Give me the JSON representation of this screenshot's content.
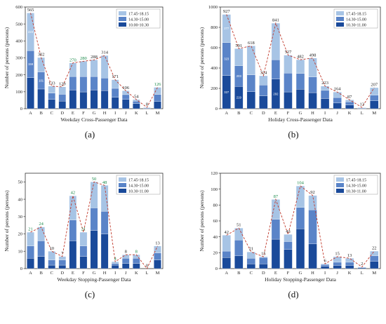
{
  "colors": {
    "layer_0": "#1a4a9a",
    "layer_1": "#5a84c8",
    "layer_2": "#a7c4e5",
    "trend_line": "#c0392b",
    "total_black": "#222222",
    "total_green": "#1a8a4a",
    "axis": "#333333"
  },
  "chart_data": [
    {
      "type": "bar",
      "panel_label": "(a)",
      "xlabel": "Weekday Cross-Passenger Data",
      "ylabel": "Number of persons (persons)",
      "categories": [
        "A",
        "B",
        "C",
        "D",
        "E",
        "F",
        "G",
        "H",
        "I",
        "J",
        "K",
        "L",
        "M"
      ],
      "ylim": [
        0,
        600
      ],
      "yticks": [
        0,
        100,
        200,
        300,
        400,
        500,
        600
      ],
      "legend": [
        "17.45-18.15",
        "14.30-15.00",
        "10.00-10.30"
      ],
      "series": [
        {
          "name": "10.00-10.30",
          "values": [
            183,
            116,
            55,
            45,
            110,
            99,
            110,
            107,
            67,
            55,
            30,
            3,
            42
          ],
          "labels": [
            "",
            "",
            "",
            "",
            "",
            "",
            "",
            "",
            "",
            "",
            "",
            "",
            ""
          ]
        },
        {
          "name": "14.30-15.00",
          "values": [
            159,
            101,
            37,
            40,
            80,
            90,
            80,
            74,
            53,
            28,
            15,
            3,
            42
          ],
          "labels": [
            "159",
            "101",
            "",
            "",
            "",
            "",
            "",
            "",
            "",
            "",
            "",
            "",
            ""
          ]
        },
        {
          "name": "17.45-18.15",
          "values": [
            223,
            85,
            41,
            44,
            80,
            91,
            98,
            133,
            51,
            23,
            9,
            2,
            42
          ],
          "labels": [
            "223",
            "",
            "",
            "",
            "",
            "",
            "",
            "",
            "",
            "",
            "",
            "",
            ""
          ]
        }
      ],
      "totals": [
        565,
        302,
        133,
        129,
        270,
        280,
        288,
        314,
        171,
        106,
        54,
        8,
        126
      ],
      "total_colors": [
        "black",
        "black",
        "black",
        "black",
        "green",
        "green",
        "black",
        "black",
        "black",
        "black",
        "black",
        "black",
        "green"
      ]
    },
    {
      "type": "bar",
      "panel_label": "(b)",
      "xlabel": "Holiday Cross-Passenger Data",
      "ylabel": "Number of persons (persons)",
      "categories": [
        "A",
        "B",
        "C",
        "D",
        "E",
        "F",
        "G",
        "H",
        "I",
        "J",
        "K",
        "L",
        "M"
      ],
      "ylim": [
        0,
        1000
      ],
      "yticks": [
        0,
        200,
        400,
        600,
        800,
        1000
      ],
      "legend": [
        "17.45-18.15",
        "14.30-15.00",
        "10.30-11.00"
      ],
      "series": [
        {
          "name": "10.30-11.00",
          "values": [
            327,
            219,
            167,
            127,
            292,
            165,
            192,
            158,
            100,
            56,
            37,
            4,
            77
          ],
          "labels": [
            "327",
            "219",
            "",
            "",
            "292",
            "",
            "",
            "",
            "",
            "",
            "",
            "",
            ""
          ]
        },
        {
          "name": "14.30-15.00",
          "values": [
            323,
            203,
            166,
            105,
            190,
            185,
            155,
            155,
            80,
            54,
            30,
            5,
            57
          ],
          "labels": [
            "323",
            "203",
            "",
            "",
            "",
            "",
            "",
            "",
            "",
            "",
            "",
            "",
            ""
          ]
        },
        {
          "name": "17.45-18.15",
          "values": [
            277,
            169,
            285,
            92,
            359,
            177,
            135,
            185,
            43,
            54,
            20,
            4,
            73
          ],
          "labels": [
            "277",
            "",
            "",
            "",
            "",
            "",
            "",
            "",
            "",
            "",
            "",
            "",
            ""
          ]
        }
      ],
      "totals": [
        927,
        591,
        618,
        324,
        841,
        527,
        482,
        498,
        223,
        164,
        87,
        13,
        207
      ],
      "total_colors": [
        "black",
        "black",
        "black",
        "black",
        "black",
        "black",
        "black",
        "black",
        "black",
        "black",
        "black",
        "black",
        "black"
      ]
    },
    {
      "type": "bar",
      "panel_label": "(c)",
      "xlabel": "Weekday Stopping-Passenger Data",
      "ylabel": "Number of persons (persons)",
      "categories": [
        "A",
        "B",
        "C",
        "D",
        "E",
        "F",
        "G",
        "H",
        "I",
        "J",
        "K",
        "L",
        "M"
      ],
      "ylim": [
        0,
        55
      ],
      "yticks": [
        0,
        10,
        20,
        30,
        40,
        50
      ],
      "legend": [
        "17.45-18.15",
        "14.30-15.00",
        "10.30-11.00"
      ],
      "series": [
        {
          "name": "10.30-11.00",
          "values": [
            6,
            7,
            2,
            2,
            16,
            7,
            22,
            20,
            2,
            3,
            3,
            0,
            5
          ],
          "labels": [
            "",
            "",
            "",
            "",
            "",
            "",
            "",
            "",
            "",
            "",
            "",
            "",
            ""
          ]
        },
        {
          "name": "14.30-15.00",
          "values": [
            7,
            9,
            3,
            3,
            12,
            6,
            13,
            13,
            1,
            3,
            3,
            0,
            4
          ],
          "labels": [
            "",
            "",
            "",
            "",
            "",
            "",
            "",
            "",
            "",
            "",
            "",
            "",
            ""
          ]
        },
        {
          "name": "17.45-18.15",
          "values": [
            8,
            8,
            5,
            2,
            14,
            8,
            15,
            15,
            1,
            2,
            2,
            0,
            4
          ],
          "labels": [
            "",
            "",
            "",
            "",
            "",
            "",
            "",
            "",
            "",
            "",
            "",
            "",
            ""
          ]
        }
      ],
      "totals": [
        21,
        24,
        10,
        7,
        42,
        21,
        50,
        48,
        4,
        8,
        8,
        0,
        13
      ],
      "total_colors": [
        "green",
        "green",
        "black",
        "black",
        "green",
        "green",
        "green",
        "green",
        "green",
        "black",
        "green",
        "black",
        "black"
      ]
    },
    {
      "type": "bar",
      "panel_label": "(d)",
      "xlabel": "Holiday Stopping-Passenger Data",
      "ylabel": "Number of persons (persons)",
      "categories": [
        "A",
        "B",
        "C",
        "D",
        "E",
        "F",
        "G",
        "H",
        "I",
        "J",
        "K",
        "L",
        "M"
      ],
      "ylim": [
        0,
        120
      ],
      "yticks": [
        0,
        20,
        40,
        60,
        80,
        100,
        120
      ],
      "legend": [
        "17.45-18.15",
        "14.30-15.00",
        "10.30-11.00"
      ],
      "series": [
        {
          "name": "10.30-11.00",
          "values": [
            14,
            16,
            6,
            6,
            37,
            24,
            50,
            31,
            3,
            4,
            4,
            1,
            9
          ],
          "labels": [
            "",
            "",
            "",
            "",
            "",
            "",
            "",
            "",
            "",
            "",
            "",
            "",
            ""
          ]
        },
        {
          "name": "14.30-15.00",
          "values": [
            8,
            20,
            7,
            8,
            25,
            10,
            27,
            43,
            2,
            4,
            4,
            0,
            7
          ],
          "labels": [
            "",
            "",
            "",
            "",
            "",
            "",
            "",
            "",
            "",
            "",
            "",
            "",
            ""
          ]
        },
        {
          "name": "17.45-18.15",
          "values": [
            20,
            15,
            8,
            1,
            25,
            9,
            27,
            18,
            1,
            7,
            5,
            1,
            6
          ],
          "labels": [
            "",
            "",
            "",
            "",
            "",
            "",
            "",
            "",
            "",
            "",
            "",
            "",
            ""
          ]
        }
      ],
      "totals": [
        42,
        51,
        21,
        15,
        87,
        43,
        104,
        92,
        6,
        15,
        13,
        2,
        22
      ],
      "total_colors": [
        "black",
        "black",
        "black",
        "black",
        "green",
        "black",
        "green",
        "black",
        "black",
        "black",
        "black",
        "black",
        "black"
      ]
    }
  ]
}
